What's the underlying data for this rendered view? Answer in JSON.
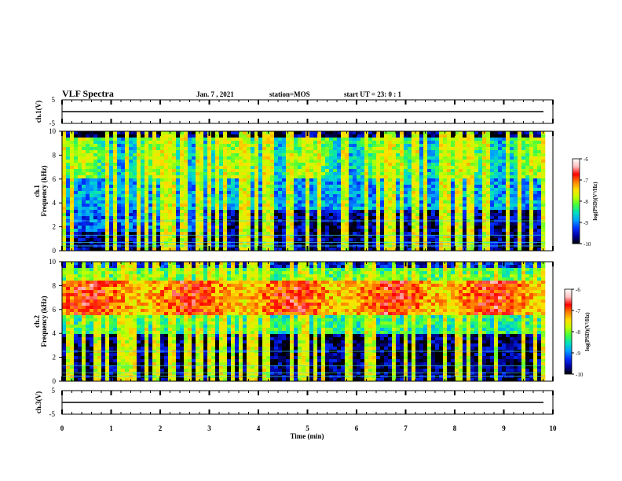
{
  "header": {
    "title": "VLF Spectra",
    "date": "Jan. 7 , 2021",
    "station": "station=MOS",
    "start": "start  UT  =   23: 0  : 1"
  },
  "chart_data": [
    {
      "type": "line",
      "name": "ch1-waveform",
      "ylabel": "ch.1(V)",
      "ylim": [
        -5,
        5
      ],
      "yticks": [
        5,
        -5
      ],
      "xlim": [
        0,
        10
      ],
      "baseline": 0
    },
    {
      "type": "heatmap",
      "name": "ch1-spectrogram",
      "ylabel": "ch.1\nFrequency (kHz)",
      "ylabel_lines": [
        "ch.1",
        "Frequency (kHz)"
      ],
      "ylim": [
        0,
        10
      ],
      "yticks": [
        0,
        2,
        4,
        6,
        8,
        10
      ],
      "xlim": [
        0,
        10
      ],
      "data_end_min": 9.82,
      "colorbar": {
        "label": "log(PSD)(V²/Hz)",
        "range": [
          -10,
          -6
        ],
        "ticks": [
          -6,
          -7,
          -8,
          -9,
          -10
        ]
      }
    },
    {
      "type": "heatmap",
      "name": "ch2-spectrogram",
      "ylabel": "ch.2\nFrequency (kHz)",
      "ylabel_lines": [
        "ch.2",
        "Frequency (kHz)"
      ],
      "ylim": [
        0,
        10
      ],
      "yticks": [
        0,
        2,
        4,
        6,
        8,
        10
      ],
      "xlim": [
        0,
        10
      ],
      "data_end_min": 9.82,
      "colorbar": {
        "label": "log(PSD)(V²/Hz)",
        "range": [
          -10,
          -6
        ],
        "ticks": [
          -6,
          -7,
          -8,
          -9,
          -10
        ]
      }
    },
    {
      "type": "line",
      "name": "ch3-waveform",
      "ylabel": "ch.3(V)",
      "ylim": [
        -5,
        5
      ],
      "yticks": [
        5,
        -5
      ],
      "xlim": [
        0,
        10
      ],
      "baseline": 0
    }
  ],
  "x_axis": {
    "label": "Time  (min)",
    "ticks": [
      0,
      1,
      2,
      3,
      4,
      5,
      6,
      7,
      8,
      9,
      10
    ]
  },
  "colors": {
    "axis": "#000000",
    "colormap": [
      "#000000",
      "#0000a0",
      "#0030ff",
      "#00a0ff",
      "#00e0c0",
      "#40ff40",
      "#c0ff00",
      "#ffe000",
      "#ff8000",
      "#ff0000",
      "#ffc0c0",
      "#ffffff"
    ]
  }
}
